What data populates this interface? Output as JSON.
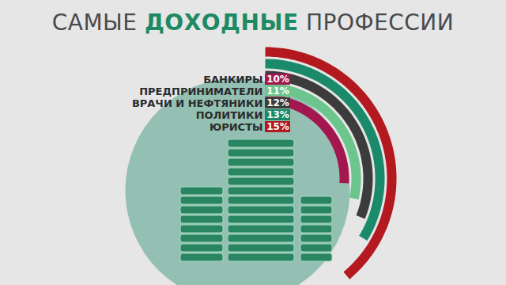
{
  "chart_data": {
    "type": "radial_bar",
    "title": "САМЫЕ ДОХОДНЫЕ ПРОФЕССИИ",
    "categories": [
      "ЮРИСТЫ",
      "ПОЛИТИКИ",
      "ВРАЧИ И НЕФТЯНИКИ",
      "ПРЕДПРИНИМАТЕЛИ",
      "БАНКИРЫ"
    ],
    "values": [
      15,
      13,
      12,
      11,
      10
    ],
    "value_labels": [
      "15%",
      "13%",
      "12%",
      "11%",
      "10%"
    ],
    "colors": [
      "#b3191e",
      "#1b8a6b",
      "#3c3c3c",
      "#6cc58c",
      "#a3174f"
    ],
    "data_labels": true
  }
}
